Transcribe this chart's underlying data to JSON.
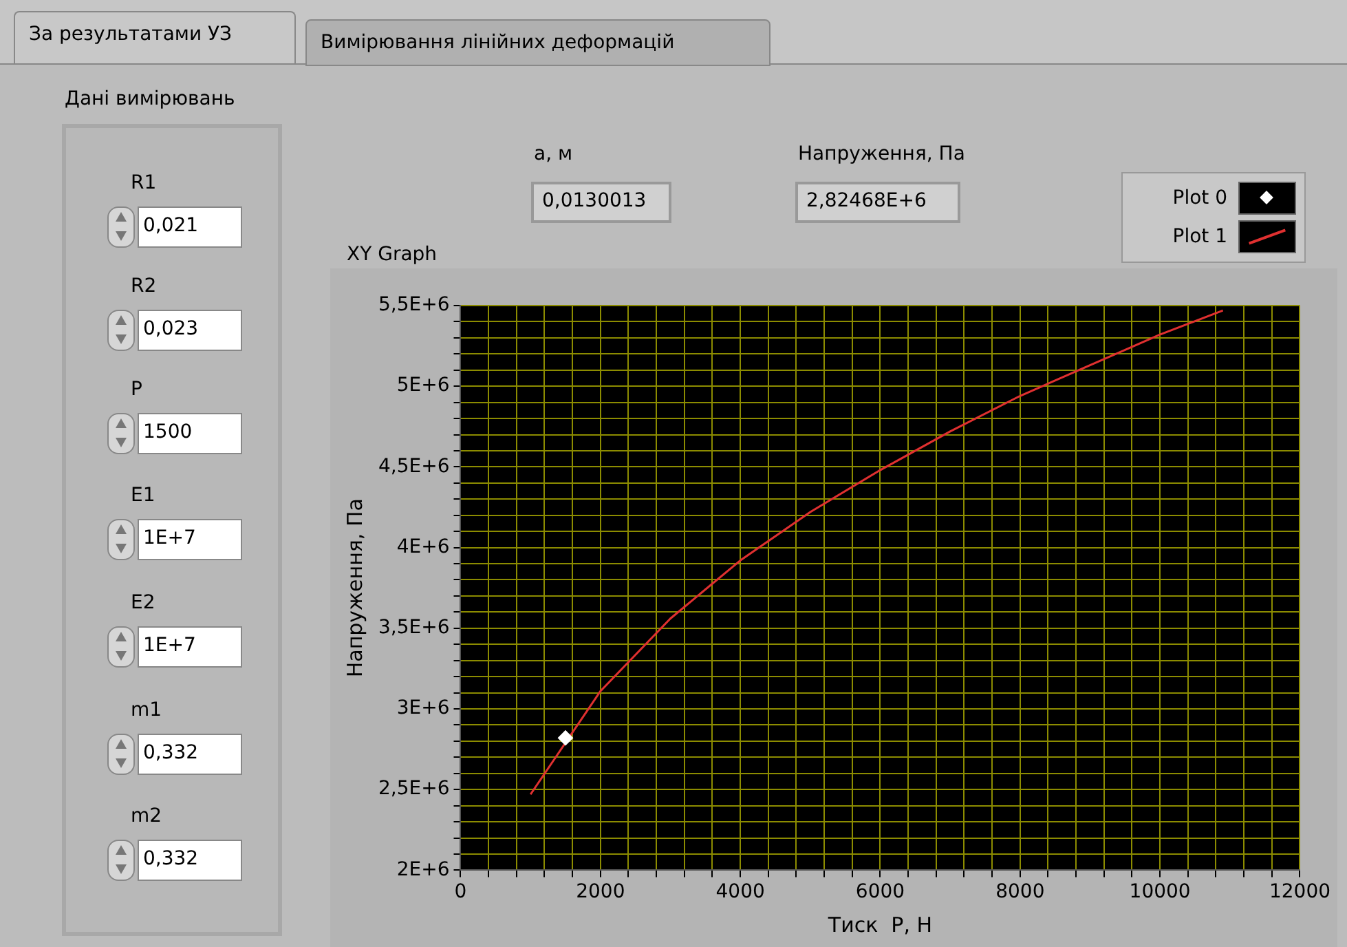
{
  "chart_data": {
    "type": "line",
    "title": "XY Graph",
    "xlabel": "Тиск  P, Н",
    "ylabel": "Напруження, Па",
    "series": [
      {
        "name": "Plot 0",
        "type": "scatter",
        "marker": "diamond",
        "color": "#ffffff",
        "x": [
          1500
        ],
        "values": [
          2820000
        ]
      },
      {
        "name": "Plot 1",
        "color": "#e03030",
        "x": [
          1000,
          2000,
          3000,
          4000,
          5000,
          6000,
          7000,
          8000,
          9000,
          10000,
          10900
        ],
        "values": [
          2470000,
          3110000,
          3560000,
          3920000,
          4220000,
          4480000,
          4720000,
          4940000,
          5130000,
          5320000,
          5470000
        ]
      }
    ],
    "xlim": [
      0,
      12000
    ],
    "xticks": [
      0,
      {
        "value": 400,
        "label": null
      },
      {
        "value": 800,
        "label": null
      },
      {
        "value": 1200,
        "label": null
      },
      {
        "value": 1600,
        "label": null
      },
      2000,
      {
        "value": 2400,
        "label": null
      },
      {
        "value": 2800,
        "label": null
      },
      {
        "value": 3200,
        "label": null
      },
      {
        "value": 3600,
        "label": null
      },
      4000,
      {
        "value": 4400,
        "label": null
      },
      {
        "value": 4800,
        "label": null
      },
      {
        "value": 5200,
        "label": null
      },
      {
        "value": 5600,
        "label": null
      },
      6000,
      {
        "value": 6400,
        "label": null
      },
      {
        "value": 6800,
        "label": null
      },
      {
        "value": 7200,
        "label": null
      },
      {
        "value": 7600,
        "label": null
      },
      8000,
      {
        "value": 8400,
        "label": null
      },
      {
        "value": 8800,
        "label": null
      },
      {
        "value": 9200,
        "label": null
      },
      {
        "value": 9600,
        "label": null
      },
      10000,
      {
        "value": 10400,
        "label": null
      },
      {
        "value": 10800,
        "label": null
      },
      {
        "value": 11200,
        "label": null
      },
      {
        "value": 11600,
        "label": null
      },
      12000
    ],
    "ylim": [
      2000000,
      5500000
    ],
    "yticks": [
      {
        "value": 2000000,
        "label": "2E+6"
      },
      {
        "value": 2100000,
        "label": null
      },
      {
        "value": 2200000,
        "label": null
      },
      {
        "value": 2300000,
        "label": null
      },
      {
        "value": 2400000,
        "label": null
      },
      {
        "value": 2500000,
        "label": "2,5E+6"
      },
      {
        "value": 2600000,
        "label": null
      },
      {
        "value": 2700000,
        "label": null
      },
      {
        "value": 2800000,
        "label": null
      },
      {
        "value": 2900000,
        "label": null
      },
      {
        "value": 3000000,
        "label": "3E+6"
      },
      {
        "value": 3100000,
        "label": null
      },
      {
        "value": 3200000,
        "label": null
      },
      {
        "value": 3300000,
        "label": null
      },
      {
        "value": 3400000,
        "label": null
      },
      {
        "value": 3500000,
        "label": "3,5E+6"
      },
      {
        "value": 3600000,
        "label": null
      },
      {
        "value": 3700000,
        "label": null
      },
      {
        "value": 3800000,
        "label": null
      },
      {
        "value": 3900000,
        "label": null
      },
      {
        "value": 4000000,
        "label": "4E+6"
      },
      {
        "value": 4100000,
        "label": null
      },
      {
        "value": 4200000,
        "label": null
      },
      {
        "value": 4300000,
        "label": null
      },
      {
        "value": 4400000,
        "label": null
      },
      {
        "value": 4500000,
        "label": "4,5E+6"
      },
      {
        "value": 4600000,
        "label": null
      },
      {
        "value": 4700000,
        "label": null
      },
      {
        "value": 4800000,
        "label": null
      },
      {
        "value": 4900000,
        "label": null
      },
      {
        "value": 5000000,
        "label": "5E+6"
      },
      {
        "value": 5100000,
        "label": null
      },
      {
        "value": 5200000,
        "label": null
      },
      {
        "value": 5300000,
        "label": null
      },
      {
        "value": 5400000,
        "label": null
      },
      {
        "value": 5500000,
        "label": "5,5E+6"
      }
    ],
    "grid": true,
    "legend": "top right",
    "annotations": [
      "За результатами УЗ",
      "Вимірювання лінійних деформацій",
      "Дані вимірювань",
      "R1",
      "0,021",
      "R2",
      "0,023",
      "P",
      "1500",
      "E1",
      "1E+7",
      "E2",
      "1E+7",
      "m1",
      "0,332",
      "m2",
      "0,332",
      "а, м",
      "0,0130013",
      "Напруження, Па",
      "2,82468E+6"
    ]
  }
}
